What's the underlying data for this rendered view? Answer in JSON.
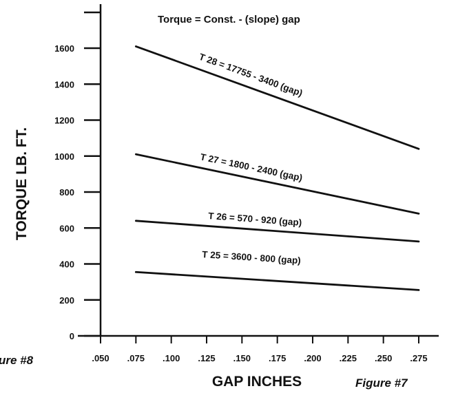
{
  "chart_data": {
    "type": "line",
    "title": "Torque = Const. - (slope) gap",
    "xlabel": "GAP INCHES",
    "ylabel": "TORQUE LB. FT.",
    "xlim": [
      0.05,
      0.275
    ],
    "ylim": [
      0,
      1600
    ],
    "x_ticks": [
      ".050",
      ".075",
      ".100",
      ".125",
      ".150",
      ".175",
      ".200",
      ".225",
      ".250",
      ".275"
    ],
    "y_ticks": [
      "0",
      "200",
      "400",
      "600",
      "800",
      "1000",
      "1200",
      "1400",
      "1600"
    ],
    "grid": false,
    "series": [
      {
        "name": "T 28 = 17755 - 3400 (gap)",
        "x": [
          0.075,
          0.275
        ],
        "y": [
          1610,
          1040
        ]
      },
      {
        "name": "T 27 = 1800 - 2400 (gap)",
        "x": [
          0.075,
          0.275
        ],
        "y": [
          1010,
          680
        ]
      },
      {
        "name": "T 26 = 570 - 920 (gap)",
        "x": [
          0.075,
          0.275
        ],
        "y": [
          640,
          525
        ]
      },
      {
        "name": "T 25 = 3600 - 800 (gap)",
        "x": [
          0.075,
          0.275
        ],
        "y": [
          355,
          255
        ]
      }
    ]
  },
  "figure_labels": {
    "left": "ure #8",
    "right": "Figure #7"
  },
  "colors": {
    "line": "#111111",
    "background": "#ffffff"
  }
}
